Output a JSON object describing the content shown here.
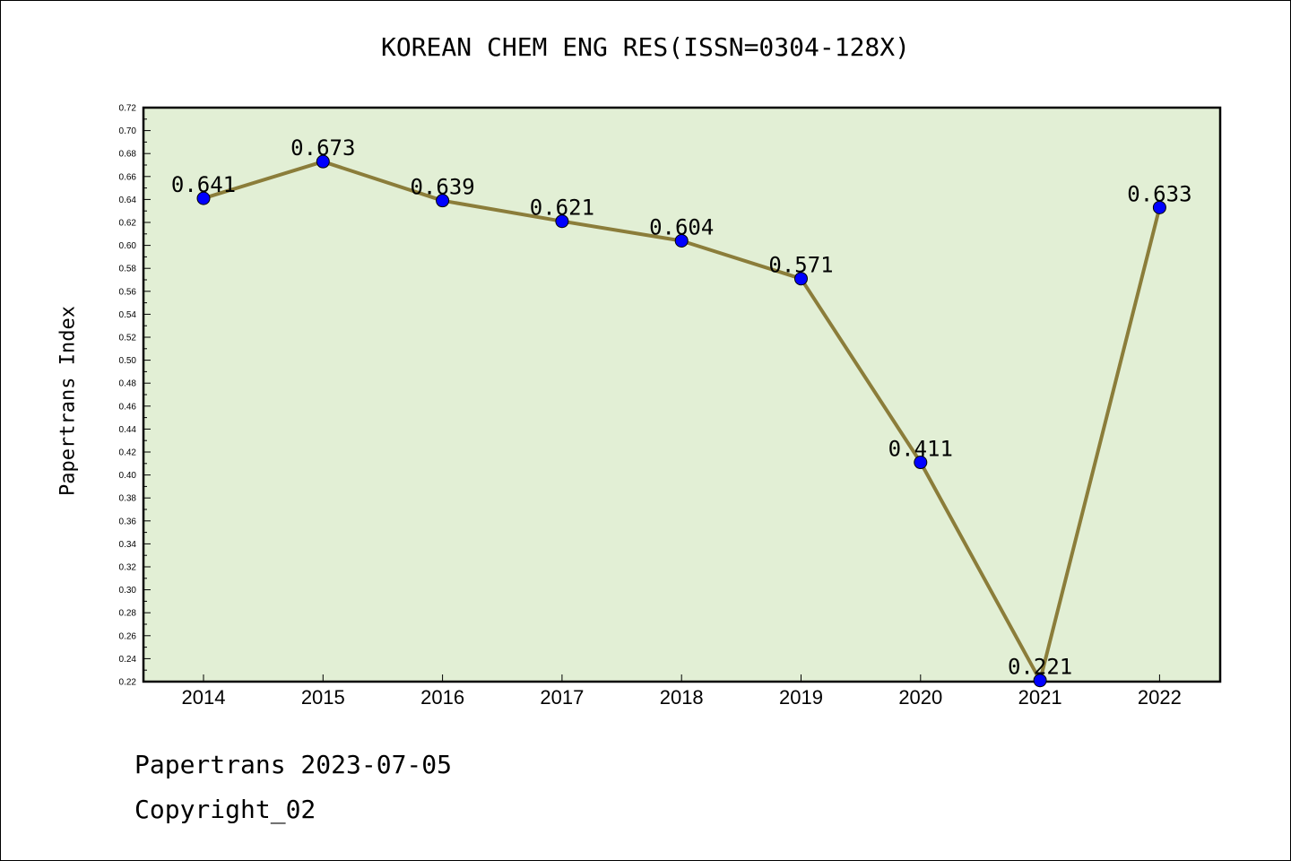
{
  "chart_data": {
    "type": "line",
    "title": "KOREAN CHEM ENG RES(ISSN=0304-128X)",
    "xlabel": "",
    "ylabel": "Papertrans Index",
    "categories": [
      "2014",
      "2015",
      "2016",
      "2017",
      "2018",
      "2019",
      "2020",
      "2021",
      "2022"
    ],
    "series": [
      {
        "values": [
          0.641,
          0.673,
          0.639,
          0.621,
          0.604,
          0.571,
          0.411,
          0.221,
          0.633
        ]
      }
    ],
    "data_labels": [
      "0.641",
      "0.673",
      "0.639",
      "0.621",
      "0.604",
      "0.571",
      "0.411",
      "0.221",
      "0.633"
    ],
    "ylim": [
      0.22,
      0.72
    ],
    "y_ticks": [
      "0.22",
      "0.24",
      "0.26",
      "0.28",
      "0.30",
      "0.32",
      "0.34",
      "0.36",
      "0.38",
      "0.40",
      "0.42",
      "0.44",
      "0.46",
      "0.48",
      "0.50",
      "0.52",
      "0.54",
      "0.56",
      "0.58",
      "0.60",
      "0.62",
      "0.64",
      "0.66",
      "0.68",
      "0.70",
      "0.72"
    ],
    "grid": false,
    "colors": {
      "plot_background": "#e2efd5",
      "line": "#8b7d3a",
      "marker": "#0000ff"
    }
  },
  "footer": {
    "date_line": "Papertrans 2023-07-05",
    "copyright": "Copyright_02"
  }
}
